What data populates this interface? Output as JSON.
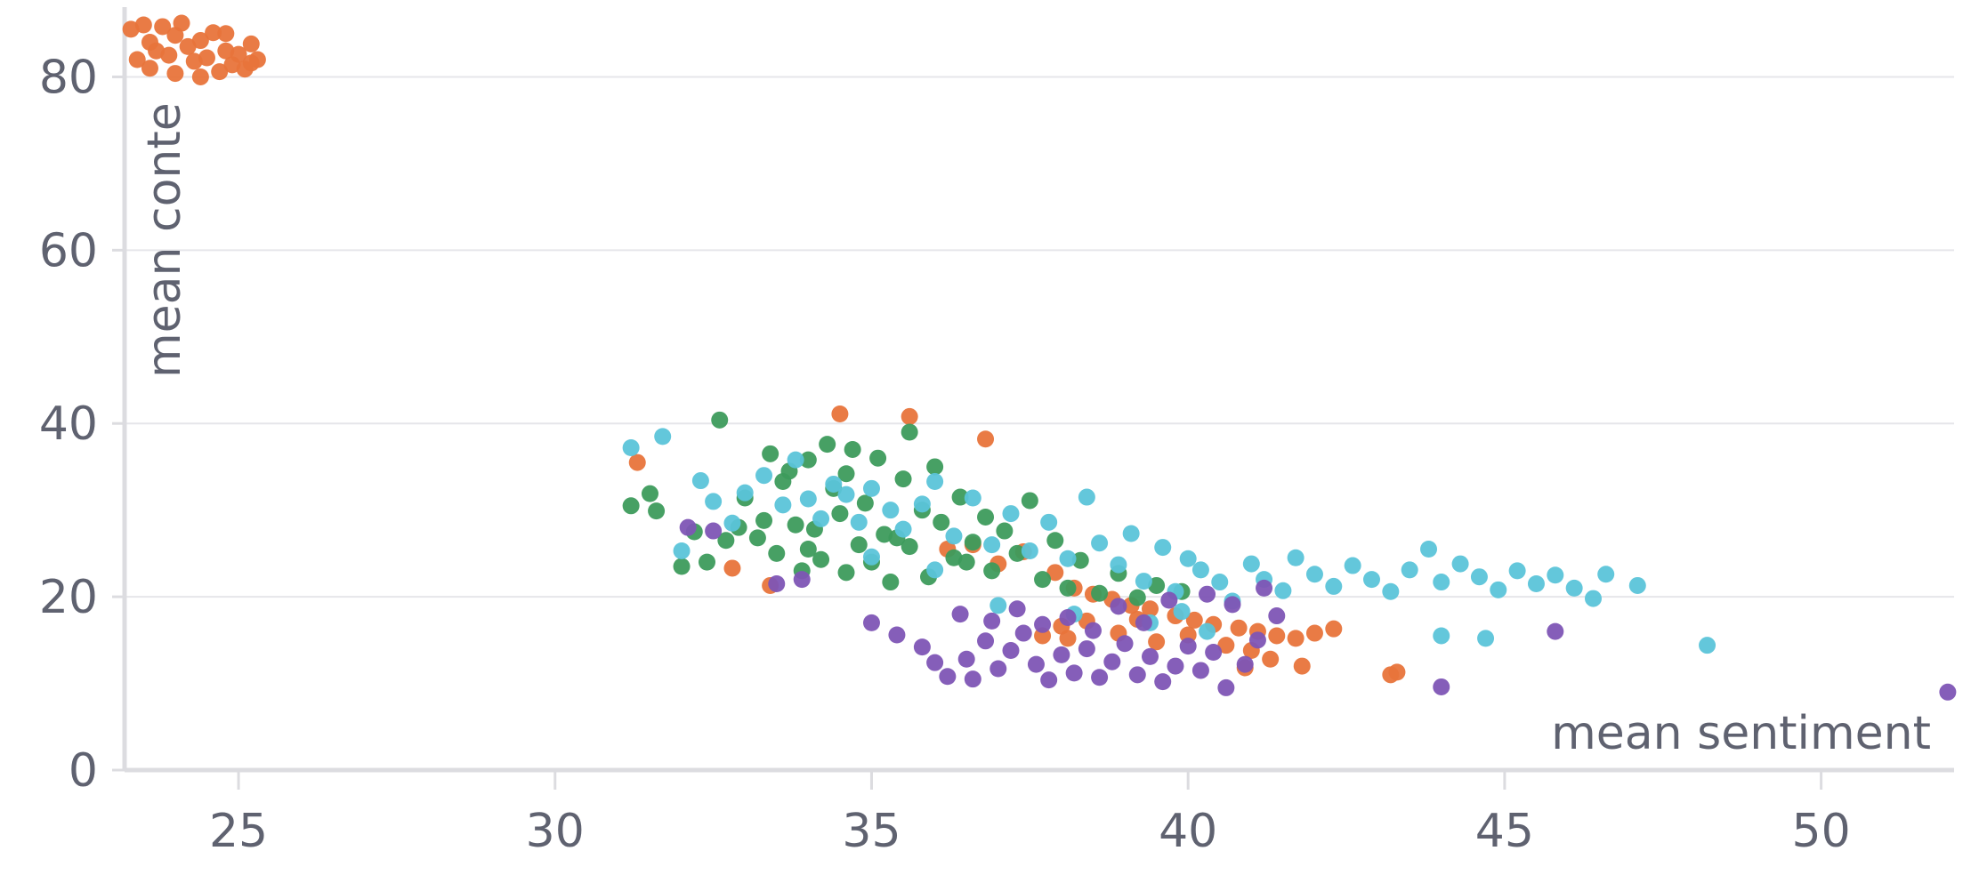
{
  "chart_data": {
    "type": "scatter",
    "title": "",
    "xlabel": "mean sentiment",
    "ylabel": "mean conte",
    "xlim": [
      23.2,
      52.1
    ],
    "ylim": [
      0,
      86
    ],
    "xticks": [
      25,
      30,
      35,
      40,
      45,
      50
    ],
    "yticks": [
      0,
      20,
      40,
      60,
      80
    ],
    "grid": {
      "horizontal": true,
      "vertical": false
    },
    "series": [
      {
        "color": "#e8743b",
        "points": [
          [
            23.3,
            85.5
          ],
          [
            23.5,
            86.0
          ],
          [
            23.6,
            84.0
          ],
          [
            23.7,
            83.0
          ],
          [
            23.8,
            85.8
          ],
          [
            23.9,
            82.5
          ],
          [
            24.0,
            84.8
          ],
          [
            24.1,
            86.2
          ],
          [
            24.2,
            83.5
          ],
          [
            24.3,
            81.8
          ],
          [
            24.4,
            84.2
          ],
          [
            24.5,
            82.2
          ],
          [
            24.6,
            85.1
          ],
          [
            24.7,
            80.6
          ],
          [
            24.8,
            83.0
          ],
          [
            24.9,
            81.4
          ],
          [
            25.0,
            82.6
          ],
          [
            25.1,
            80.9
          ],
          [
            25.2,
            83.8
          ],
          [
            25.3,
            82.0
          ],
          [
            23.4,
            82.0
          ],
          [
            23.6,
            81.0
          ],
          [
            24.0,
            80.4
          ],
          [
            24.4,
            80.0
          ],
          [
            24.8,
            85.0
          ],
          [
            25.2,
            81.6
          ],
          [
            31.3,
            35.5
          ],
          [
            32.8,
            23.3
          ],
          [
            33.4,
            21.3
          ],
          [
            34.5,
            41.1
          ],
          [
            35.6,
            40.8
          ],
          [
            36.8,
            38.2
          ],
          [
            36.2,
            25.5
          ],
          [
            36.6,
            26.0
          ],
          [
            37.0,
            23.8
          ],
          [
            37.4,
            25.2
          ],
          [
            37.9,
            22.8
          ],
          [
            38.2,
            21.0
          ],
          [
            38.5,
            20.3
          ],
          [
            38.8,
            19.7
          ],
          [
            39.1,
            19.0
          ],
          [
            39.4,
            18.6
          ],
          [
            39.8,
            17.8
          ],
          [
            40.1,
            17.3
          ],
          [
            40.4,
            16.8
          ],
          [
            40.8,
            16.4
          ],
          [
            41.1,
            16.0
          ],
          [
            41.4,
            15.5
          ],
          [
            41.7,
            15.2
          ],
          [
            42.0,
            15.8
          ],
          [
            42.3,
            16.3
          ],
          [
            41.8,
            12.0
          ],
          [
            43.2,
            11.0
          ],
          [
            43.3,
            11.3
          ],
          [
            37.7,
            15.5
          ],
          [
            38.0,
            16.6
          ],
          [
            38.4,
            17.2
          ],
          [
            38.9,
            15.8
          ],
          [
            39.5,
            14.8
          ],
          [
            40.0,
            15.6
          ],
          [
            40.6,
            14.4
          ],
          [
            41.0,
            13.8
          ],
          [
            41.3,
            12.8
          ],
          [
            40.9,
            11.8
          ],
          [
            38.1,
            15.2
          ],
          [
            39.2,
            17.4
          ]
        ]
      },
      {
        "color": "#3d9b5c",
        "points": [
          [
            31.2,
            30.5
          ],
          [
            31.5,
            31.9
          ],
          [
            31.6,
            29.9
          ],
          [
            32.0,
            23.5
          ],
          [
            32.2,
            27.5
          ],
          [
            32.4,
            24.0
          ],
          [
            32.6,
            40.4
          ],
          [
            32.7,
            26.5
          ],
          [
            32.9,
            28.0
          ],
          [
            33.0,
            31.4
          ],
          [
            33.2,
            26.8
          ],
          [
            33.4,
            36.5
          ],
          [
            33.5,
            25.0
          ],
          [
            33.6,
            33.3
          ],
          [
            33.8,
            28.3
          ],
          [
            33.9,
            23.0
          ],
          [
            34.0,
            35.8
          ],
          [
            34.1,
            27.8
          ],
          [
            34.2,
            24.3
          ],
          [
            34.4,
            32.5
          ],
          [
            34.5,
            29.6
          ],
          [
            34.6,
            22.8
          ],
          [
            34.7,
            37.0
          ],
          [
            34.8,
            26.0
          ],
          [
            34.9,
            30.8
          ],
          [
            35.0,
            24.0
          ],
          [
            35.1,
            36.0
          ],
          [
            35.2,
            27.2
          ],
          [
            35.3,
            21.7
          ],
          [
            35.5,
            33.6
          ],
          [
            35.6,
            25.8
          ],
          [
            35.8,
            30.0
          ],
          [
            35.9,
            22.3
          ],
          [
            36.0,
            35.0
          ],
          [
            36.1,
            28.6
          ],
          [
            36.3,
            24.5
          ],
          [
            36.4,
            31.5
          ],
          [
            36.6,
            26.3
          ],
          [
            36.8,
            29.2
          ],
          [
            36.9,
            23.0
          ],
          [
            37.1,
            27.6
          ],
          [
            37.3,
            25.0
          ],
          [
            37.5,
            31.1
          ],
          [
            37.7,
            22.0
          ],
          [
            37.9,
            26.5
          ],
          [
            38.1,
            21.0
          ],
          [
            38.3,
            24.2
          ],
          [
            38.6,
            20.4
          ],
          [
            38.9,
            22.7
          ],
          [
            39.2,
            19.9
          ],
          [
            39.5,
            21.3
          ],
          [
            39.9,
            20.6
          ],
          [
            35.6,
            39.0
          ],
          [
            34.3,
            37.6
          ],
          [
            33.7,
            34.5
          ],
          [
            34.6,
            34.2
          ],
          [
            35.4,
            26.8
          ],
          [
            34.0,
            25.5
          ],
          [
            33.3,
            28.8
          ],
          [
            36.5,
            24.0
          ]
        ]
      },
      {
        "color": "#5bc4d9",
        "points": [
          [
            31.2,
            37.2
          ],
          [
            31.7,
            38.5
          ],
          [
            32.0,
            25.3
          ],
          [
            32.3,
            33.4
          ],
          [
            32.5,
            31.0
          ],
          [
            32.8,
            28.5
          ],
          [
            33.0,
            32.0
          ],
          [
            33.3,
            34.0
          ],
          [
            33.6,
            30.6
          ],
          [
            33.8,
            35.8
          ],
          [
            34.0,
            31.3
          ],
          [
            34.2,
            29.0
          ],
          [
            34.4,
            33.0
          ],
          [
            34.6,
            31.8
          ],
          [
            34.8,
            28.6
          ],
          [
            35.0,
            32.5
          ],
          [
            35.3,
            30.0
          ],
          [
            35.5,
            27.8
          ],
          [
            35.8,
            30.7
          ],
          [
            36.0,
            33.3
          ],
          [
            36.3,
            27.0
          ],
          [
            36.6,
            31.4
          ],
          [
            36.9,
            26.0
          ],
          [
            37.2,
            29.6
          ],
          [
            37.5,
            25.3
          ],
          [
            37.8,
            28.6
          ],
          [
            38.1,
            24.4
          ],
          [
            38.4,
            31.5
          ],
          [
            38.6,
            26.2
          ],
          [
            38.9,
            23.7
          ],
          [
            39.1,
            27.3
          ],
          [
            39.3,
            21.8
          ],
          [
            39.6,
            25.7
          ],
          [
            39.8,
            20.6
          ],
          [
            40.0,
            24.4
          ],
          [
            40.2,
            23.1
          ],
          [
            40.5,
            21.7
          ],
          [
            40.7,
            19.5
          ],
          [
            41.0,
            23.8
          ],
          [
            41.2,
            22.0
          ],
          [
            41.5,
            20.7
          ],
          [
            41.7,
            24.5
          ],
          [
            42.0,
            22.6
          ],
          [
            42.3,
            21.2
          ],
          [
            42.6,
            23.6
          ],
          [
            42.9,
            22.0
          ],
          [
            43.2,
            20.6
          ],
          [
            43.5,
            23.1
          ],
          [
            43.8,
            25.5
          ],
          [
            44.0,
            21.7
          ],
          [
            44.3,
            23.8
          ],
          [
            44.6,
            22.3
          ],
          [
            44.9,
            20.8
          ],
          [
            45.2,
            23.0
          ],
          [
            45.5,
            21.5
          ],
          [
            45.8,
            22.5
          ],
          [
            46.1,
            21.0
          ],
          [
            46.4,
            19.8
          ],
          [
            46.6,
            22.6
          ],
          [
            47.1,
            21.3
          ],
          [
            48.2,
            14.4
          ],
          [
            44.0,
            15.5
          ],
          [
            44.7,
            15.2
          ],
          [
            39.4,
            17.0
          ],
          [
            39.9,
            18.3
          ],
          [
            40.3,
            16.0
          ],
          [
            36.0,
            23.1
          ],
          [
            35.0,
            24.6
          ],
          [
            37.0,
            19.0
          ],
          [
            38.2,
            18.0
          ]
        ]
      },
      {
        "color": "#7e55b5",
        "points": [
          [
            32.1,
            28.0
          ],
          [
            32.5,
            27.6
          ],
          [
            33.5,
            21.5
          ],
          [
            33.9,
            22.0
          ],
          [
            35.0,
            17.0
          ],
          [
            35.4,
            15.6
          ],
          [
            35.8,
            14.2
          ],
          [
            36.0,
            12.4
          ],
          [
            36.2,
            10.8
          ],
          [
            36.5,
            12.8
          ],
          [
            36.8,
            14.9
          ],
          [
            37.0,
            11.7
          ],
          [
            37.2,
            13.8
          ],
          [
            37.4,
            15.8
          ],
          [
            37.6,
            12.2
          ],
          [
            37.8,
            10.4
          ],
          [
            38.0,
            13.3
          ],
          [
            38.2,
            11.2
          ],
          [
            38.4,
            14.0
          ],
          [
            38.6,
            10.7
          ],
          [
            38.8,
            12.5
          ],
          [
            39.0,
            14.6
          ],
          [
            39.2,
            11.0
          ],
          [
            39.4,
            13.1
          ],
          [
            39.6,
            10.2
          ],
          [
            39.8,
            12.0
          ],
          [
            40.0,
            14.3
          ],
          [
            40.2,
            11.5
          ],
          [
            40.4,
            13.6
          ],
          [
            40.6,
            9.5
          ],
          [
            40.9,
            12.2
          ],
          [
            41.1,
            15.0
          ],
          [
            41.4,
            17.8
          ],
          [
            36.4,
            18.0
          ],
          [
            36.9,
            17.2
          ],
          [
            37.3,
            18.6
          ],
          [
            37.7,
            16.8
          ],
          [
            38.1,
            17.6
          ],
          [
            38.5,
            16.1
          ],
          [
            38.9,
            18.9
          ],
          [
            39.3,
            17.0
          ],
          [
            39.7,
            19.6
          ],
          [
            40.3,
            20.3
          ],
          [
            40.7,
            19.1
          ],
          [
            41.2,
            21.0
          ],
          [
            36.6,
            10.5
          ],
          [
            44.0,
            9.6
          ],
          [
            45.8,
            16.0
          ],
          [
            52.0,
            9.0
          ]
        ]
      }
    ]
  }
}
